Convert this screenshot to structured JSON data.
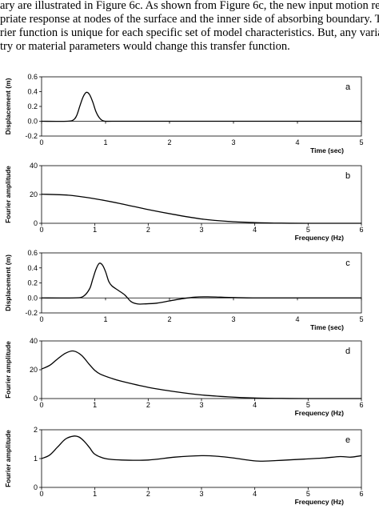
{
  "text": {
    "line1": "ary are illustrated in Figure 6c. As shown from Figure 6c, the new input motion res",
    "line2": "priate response at nodes of the surface and the inner side of absorbing boundary. The",
    "line3": "rier function is unique for each specific set of model characteristics. But, any variatio",
    "line4": "try or material parameters would change this transfer function."
  },
  "chart_data": [
    {
      "type": "line",
      "panel_label": "a",
      "xlabel": "Time (sec)",
      "ylabel": "Displacement (m)",
      "xlim": [
        0,
        5
      ],
      "ylim": [
        -0.2,
        0.6
      ],
      "xticks": [
        0,
        1,
        2,
        3,
        4,
        5
      ],
      "yticks": [
        -0.2,
        0.0,
        0.2,
        0.4,
        0.6
      ],
      "ytick_labels": [
        "-0.2",
        "0.0",
        "0.2",
        "0.4",
        "0.6"
      ],
      "grid": false,
      "series": [
        {
          "x": [
            0,
            0.4,
            0.5,
            0.55,
            0.6,
            0.65,
            0.7,
            0.75,
            0.8,
            0.85,
            0.9,
            0.95,
            1.0,
            1.1,
            1.5,
            2,
            3,
            4,
            5
          ],
          "y": [
            0,
            0,
            0.02,
            0.08,
            0.21,
            0.33,
            0.39,
            0.36,
            0.26,
            0.13,
            0.05,
            0.01,
            0,
            0,
            0,
            0,
            0,
            0,
            0
          ]
        }
      ]
    },
    {
      "type": "line",
      "panel_label": "b",
      "xlabel": "Frequency (Hz)",
      "ylabel": "Fourier amplitude",
      "xlim": [
        0,
        6
      ],
      "ylim": [
        0,
        40
      ],
      "xticks": [
        0,
        1,
        2,
        3,
        4,
        5,
        6
      ],
      "yticks": [
        0,
        20,
        40
      ],
      "ytick_labels": [
        "0",
        "20",
        "40"
      ],
      "grid": false,
      "series": [
        {
          "x": [
            0,
            0.5,
            1,
            1.5,
            2,
            2.5,
            3,
            3.5,
            4,
            4.5,
            5,
            6
          ],
          "y": [
            20.2,
            19.5,
            17,
            13.5,
            9.5,
            6,
            3,
            1.3,
            0.5,
            0.1,
            0,
            0
          ]
        }
      ]
    },
    {
      "type": "line",
      "panel_label": "c",
      "xlabel": "Time (sec)",
      "ylabel": "Displacement (m)",
      "xlim": [
        0,
        5
      ],
      "ylim": [
        -0.2,
        0.6
      ],
      "xticks": [
        0,
        1,
        2,
        3,
        4,
        5
      ],
      "yticks": [
        -0.2,
        0.0,
        0.2,
        0.4,
        0.6
      ],
      "ytick_labels": [
        "-0.2",
        "0.0",
        "0.2",
        "0.4",
        "0.6"
      ],
      "grid": false,
      "series": [
        {
          "x": [
            0,
            0.5,
            0.65,
            0.75,
            0.8,
            0.85,
            0.9,
            0.95,
            1.0,
            1.05,
            1.1,
            1.2,
            1.3,
            1.4,
            1.5,
            1.6,
            1.8,
            2.0,
            2.2,
            2.4,
            2.6,
            2.8,
            3.0,
            3.3,
            3.6,
            4.0,
            4.5,
            5.0
          ],
          "y": [
            0,
            0,
            0.02,
            0.12,
            0.25,
            0.38,
            0.46,
            0.44,
            0.35,
            0.22,
            0.16,
            0.1,
            0.04,
            -0.05,
            -0.08,
            -0.08,
            -0.07,
            -0.04,
            -0.01,
            0.01,
            0.015,
            0.01,
            0.005,
            0,
            0,
            0,
            0,
            0
          ]
        }
      ]
    },
    {
      "type": "line",
      "panel_label": "d",
      "xlabel": "Frequency (Hz)",
      "ylabel": "Fourier amplitude",
      "xlim": [
        0,
        6
      ],
      "ylim": [
        0,
        40
      ],
      "xticks": [
        0,
        1,
        2,
        3,
        4,
        5,
        6
      ],
      "yticks": [
        0,
        20,
        40
      ],
      "ytick_labels": [
        "0",
        "20",
        "40"
      ],
      "grid": false,
      "series": [
        {
          "x": [
            0,
            0.15,
            0.3,
            0.45,
            0.6,
            0.75,
            0.9,
            1.0,
            1.1,
            1.3,
            1.5,
            2.0,
            2.5,
            3.0,
            3.5,
            4.0,
            4.5,
            5.0,
            6.0
          ],
          "y": [
            20.5,
            23,
            27.5,
            31.5,
            33,
            30,
            23.5,
            19.5,
            17,
            14.2,
            12,
            7.8,
            4.8,
            2.5,
            1.2,
            0.4,
            0.1,
            0,
            0
          ]
        }
      ]
    },
    {
      "type": "line",
      "panel_label": "e",
      "xlabel": "Frequency (Hz)",
      "ylabel": "Fourier amplitude",
      "xlim": [
        0,
        6
      ],
      "ylim": [
        0,
        2
      ],
      "xticks": [
        0,
        1,
        2,
        3,
        4,
        5,
        6
      ],
      "yticks": [
        0,
        1,
        2
      ],
      "ytick_labels": [
        "0",
        "1",
        "2"
      ],
      "grid": false,
      "series": [
        {
          "x": [
            0,
            0.15,
            0.3,
            0.45,
            0.6,
            0.7,
            0.8,
            0.9,
            1.0,
            1.2,
            1.5,
            2.0,
            2.5,
            3.0,
            3.3,
            3.6,
            3.9,
            4.1,
            4.4,
            4.7,
            5.0,
            5.3,
            5.6,
            5.8,
            6.0
          ],
          "y": [
            1.0,
            1.12,
            1.4,
            1.68,
            1.78,
            1.75,
            1.6,
            1.38,
            1.15,
            1.0,
            0.95,
            0.95,
            1.05,
            1.1,
            1.08,
            1.02,
            0.94,
            0.91,
            0.93,
            0.96,
            0.99,
            1.02,
            1.07,
            1.05,
            1.1
          ]
        }
      ]
    }
  ]
}
